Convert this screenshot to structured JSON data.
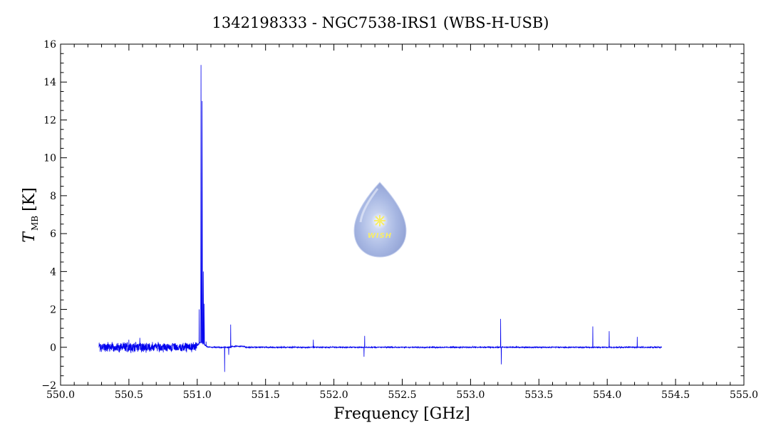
{
  "chart_data": {
    "type": "line",
    "title": "1342198333 - NGC7538-IRS1 (WBS-H-USB)",
    "xlabel": "Frequency [GHz]",
    "ylabel_main": "T",
    "ylabel_sub": "MB",
    "ylabel_unit": "[K]",
    "xlim": [
      550.0,
      555.0
    ],
    "ylim": [
      -2,
      16
    ],
    "x_ticks": [
      "550.0",
      "550.5",
      "551.0",
      "551.5",
      "552.0",
      "552.5",
      "553.0",
      "553.5",
      "554.0",
      "554.5",
      "555.0"
    ],
    "y_ticks": [
      "−2",
      "0",
      "2",
      "4",
      "6",
      "8",
      "10",
      "12",
      "14",
      "16"
    ],
    "grid": false,
    "series": [
      {
        "color": "#0000ee",
        "x_range": [
          550.28,
          554.4
        ],
        "noisy_segment": [
          550.28,
          551.0
        ],
        "noisy_amplitude": 0.2,
        "base_noise": 0.05,
        "features": [
          {
            "x": 550.5,
            "y": 0.4
          },
          {
            "x": 550.58,
            "y": 0.5
          },
          {
            "x": 551.015,
            "y": 2.0
          },
          {
            "x": 551.028,
            "y": 14.9
          },
          {
            "x": 551.036,
            "y": 13.0
          },
          {
            "x": 551.044,
            "y": 4.0
          },
          {
            "x": 551.052,
            "y": 2.3
          },
          {
            "x": 551.065,
            "y": 0.3
          },
          {
            "x": 551.2,
            "y": -1.3
          },
          {
            "x": 551.23,
            "y": -0.4
          },
          {
            "x": 551.245,
            "y": 1.2
          },
          {
            "x": 551.85,
            "y": 0.4
          },
          {
            "x": 552.225,
            "y": 0.6
          },
          {
            "x": 552.22,
            "y": -0.5
          },
          {
            "x": 553.22,
            "y": 1.5
          },
          {
            "x": 553.225,
            "y": -0.9
          },
          {
            "x": 553.895,
            "y": 1.1
          },
          {
            "x": 554.015,
            "y": 0.85
          },
          {
            "x": 554.22,
            "y": 0.55
          }
        ]
      }
    ],
    "watermark": {
      "text": "WISH",
      "colors": {
        "drop": "#9fb2e0",
        "star": "#f6ec6a"
      }
    }
  }
}
